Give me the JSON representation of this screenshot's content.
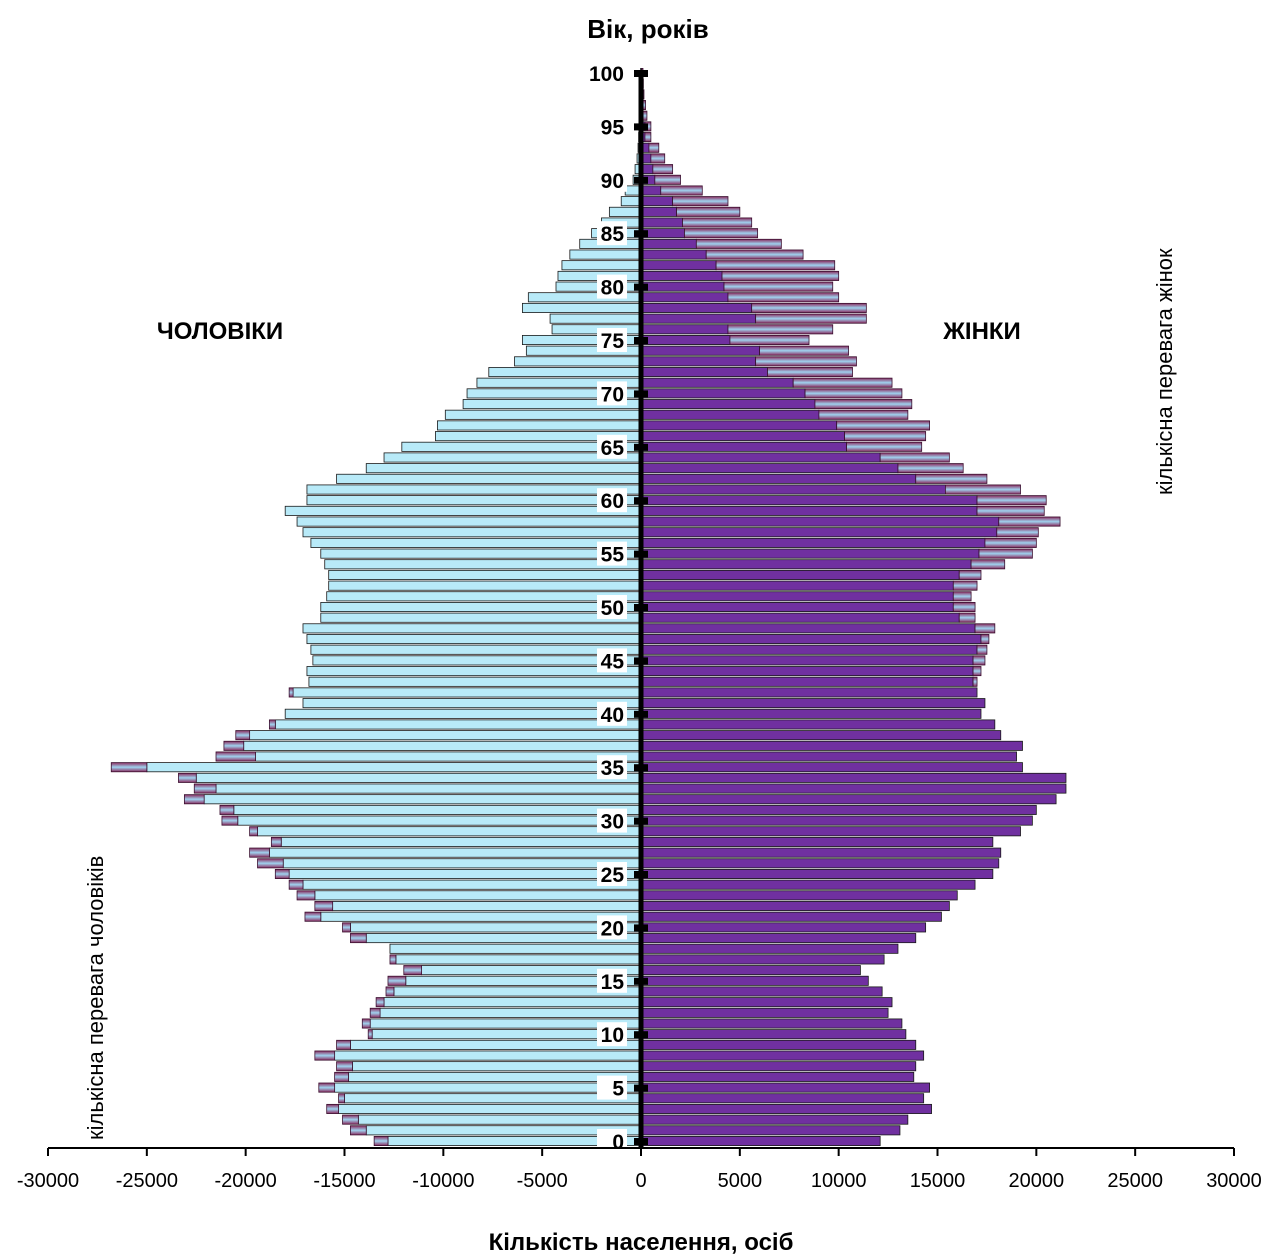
{
  "chart_data": {
    "type": "bar",
    "orientation": "horizontal",
    "title": "Вік, років",
    "xlabel": "Кількість населення, осіб",
    "xlim": [
      -30000,
      30000
    ],
    "x_ticks": [
      "-30000",
      "-25000",
      "-20000",
      "-15000",
      "-10000",
      "-5000",
      "0",
      "5000",
      "10000",
      "15000",
      "20000",
      "25000",
      "30000"
    ],
    "age_ticks": [
      "0",
      "5",
      "10",
      "15",
      "20",
      "25",
      "30",
      "35",
      "40",
      "45",
      "50",
      "55",
      "60",
      "65",
      "70",
      "75",
      "80",
      "85",
      "90",
      "95",
      "100"
    ],
    "labels": {
      "male": "ЧОЛОВІКИ",
      "female": "ЖІНКИ",
      "male_excess": "кількісна перевага чоловіків",
      "female_excess": "кількісна перевага жінок"
    },
    "colors": {
      "male": "#b8eaf8",
      "female": "#7030a0",
      "excess": "#a24e78"
    },
    "ages": [
      0,
      1,
      2,
      3,
      4,
      5,
      6,
      7,
      8,
      9,
      10,
      11,
      12,
      13,
      14,
      15,
      16,
      17,
      18,
      19,
      20,
      21,
      22,
      23,
      24,
      25,
      26,
      27,
      28,
      29,
      30,
      31,
      32,
      33,
      34,
      35,
      36,
      37,
      38,
      39,
      40,
      41,
      42,
      43,
      44,
      45,
      46,
      47,
      48,
      49,
      50,
      51,
      52,
      53,
      54,
      55,
      56,
      57,
      58,
      59,
      60,
      61,
      62,
      63,
      64,
      65,
      66,
      67,
      68,
      69,
      70,
      71,
      72,
      73,
      74,
      75,
      76,
      77,
      78,
      79,
      80,
      81,
      82,
      83,
      84,
      85,
      86,
      87,
      88,
      89,
      90,
      91,
      92,
      93,
      94,
      95,
      96,
      97,
      98,
      99,
      100
    ],
    "male": [
      12800,
      13900,
      14300,
      15300,
      15000,
      15500,
      14800,
      14600,
      15500,
      14700,
      13600,
      13700,
      13200,
      13000,
      12500,
      11900,
      11100,
      12400,
      12700,
      13900,
      14700,
      16200,
      15600,
      16500,
      17100,
      17800,
      18100,
      18800,
      18200,
      19400,
      20400,
      20600,
      22100,
      21500,
      22500,
      25000,
      19500,
      20100,
      19800,
      18500,
      18000,
      17100,
      17600,
      16800,
      16900,
      16600,
      16700,
      16900,
      17100,
      16200,
      16200,
      15900,
      15800,
      15800,
      16000,
      16200,
      16700,
      17100,
      17400,
      18000,
      16900,
      16900,
      15400,
      13900,
      13000,
      12100,
      10400,
      10300,
      9900,
      9000,
      8800,
      8300,
      7700,
      6400,
      5800,
      6000,
      4500,
      4600,
      6000,
      5700,
      4300,
      4200,
      4000,
      3600,
      3100,
      2500,
      2000,
      1600,
      1000,
      800,
      400,
      300,
      200,
      150,
      120,
      100,
      60,
      50,
      40,
      30,
      20
    ],
    "male_excess": [
      700,
      800,
      800,
      600,
      300,
      800,
      700,
      800,
      1000,
      700,
      200,
      400,
      500,
      400,
      400,
      900,
      900,
      300,
      0,
      800,
      400,
      800,
      900,
      900,
      700,
      700,
      1300,
      1000,
      500,
      400,
      800,
      700,
      1000,
      1100,
      900,
      1800,
      2000,
      1000,
      700,
      300,
      0,
      0,
      200,
      0,
      0,
      0,
      0,
      0,
      0,
      0,
      0,
      0,
      0,
      0,
      0,
      0,
      0,
      0,
      0,
      0,
      0,
      0,
      0,
      0,
      0,
      0,
      0,
      0,
      0,
      0,
      0,
      0,
      0,
      0,
      0,
      0,
      0,
      0,
      0,
      0,
      0,
      0,
      0,
      0,
      0,
      0,
      0,
      0,
      0,
      0,
      0,
      0,
      0,
      0,
      0,
      0,
      0,
      0,
      0,
      0,
      0
    ],
    "female": [
      12100,
      13100,
      13500,
      14700,
      14300,
      14600,
      13800,
      13900,
      14300,
      13900,
      13400,
      13200,
      12500,
      12700,
      12200,
      11500,
      11100,
      12300,
      13000,
      13900,
      14400,
      15200,
      15600,
      16000,
      16900,
      17800,
      18100,
      18200,
      17800,
      19200,
      19800,
      20000,
      21000,
      21500,
      21500,
      19300,
      19000,
      19300,
      18200,
      17900,
      17200,
      17400,
      17000,
      16800,
      16800,
      16800,
      17000,
      17200,
      16900,
      16100,
      15800,
      15800,
      15800,
      16100,
      16700,
      17100,
      17400,
      18000,
      18100,
      17000,
      17000,
      15400,
      13900,
      13000,
      12100,
      10400,
      10300,
      9900,
      9000,
      8800,
      8300,
      7700,
      6400,
      5800,
      6000,
      4500,
      4400,
      5800,
      5600,
      4400,
      4200,
      4100,
      3800,
      3300,
      2800,
      2200,
      2100,
      1800,
      1600,
      1000,
      700,
      600,
      500,
      400,
      200,
      200,
      100,
      80,
      50,
      40,
      40
    ],
    "female_excess": [
      0,
      0,
      0,
      0,
      0,
      0,
      0,
      0,
      0,
      0,
      0,
      0,
      0,
      0,
      0,
      0,
      0,
      0,
      0,
      0,
      0,
      0,
      0,
      0,
      0,
      0,
      0,
      0,
      0,
      0,
      0,
      0,
      0,
      0,
      0,
      0,
      0,
      0,
      0,
      0,
      0,
      0,
      0,
      200,
      400,
      600,
      500,
      400,
      1000,
      800,
      1100,
      900,
      1200,
      1100,
      1700,
      2700,
      2600,
      2100,
      3100,
      3400,
      3500,
      3800,
      3600,
      3300,
      3500,
      3800,
      4100,
      4700,
      4500,
      4900,
      4900,
      5000,
      4300,
      5100,
      4500,
      4000,
      5300,
      5600,
      5800,
      5600,
      5500,
      5900,
      6000,
      4900,
      4300,
      3700,
      3500,
      3200,
      2800,
      2100,
      1300,
      1000,
      700,
      500,
      300,
      300,
      200,
      150,
      100,
      80,
      60
    ]
  }
}
